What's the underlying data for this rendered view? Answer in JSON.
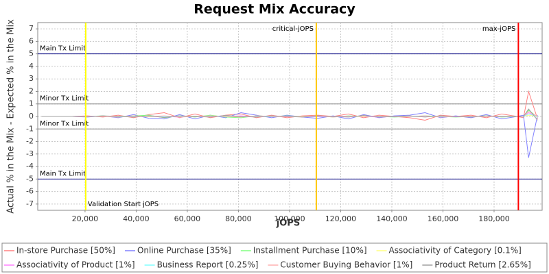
{
  "chart_data": {
    "type": "line",
    "title": "Request Mix Accuracy",
    "x_label": "jOPS",
    "y_label": "Actual % in the Mix - Expected % in the Mix",
    "xlim": [
      1500,
      198800
    ],
    "ylim": [
      -7.5,
      7.5
    ],
    "xticks": [
      {
        "value": 20000,
        "label": "20,000"
      },
      {
        "value": 40000,
        "label": "40,000"
      },
      {
        "value": 60000,
        "label": "60,000"
      },
      {
        "value": 80000,
        "label": "80,000"
      },
      {
        "value": 100000,
        "label": "100,000"
      },
      {
        "value": 120000,
        "label": "120,000"
      },
      {
        "value": 140000,
        "label": "140,000"
      },
      {
        "value": 160000,
        "label": "160,000"
      },
      {
        "value": 180000,
        "label": "180,000"
      }
    ],
    "yticks": [
      -7,
      -6,
      -5,
      -4,
      -3,
      -2,
      -1,
      0,
      1,
      2,
      3,
      4,
      5,
      6,
      7
    ],
    "grid": true,
    "limits": [
      {
        "y": 5,
        "label": "Main Tx Limit",
        "color": "#000080"
      },
      {
        "y": 1,
        "label": "Minor Tx Limit",
        "color": "#808080"
      },
      {
        "y": -1,
        "label": "Minor Tx Limit",
        "color": "#808080"
      },
      {
        "y": -5,
        "label": "Main Tx Limit",
        "color": "#000080"
      }
    ],
    "markers": [
      {
        "x": 20270,
        "label": "Validation Start jOPS",
        "color": "#ffff00",
        "label_side": "bottom"
      },
      {
        "x": 110470,
        "label": "critical-jOPS",
        "color": "#ffc800",
        "label_side": "top"
      },
      {
        "x": 189500,
        "label": "max-jOPS",
        "color": "#ff0000",
        "label_side": "top"
      }
    ],
    "x": [
      3000,
      9000,
      15000,
      21000,
      27000,
      33000,
      39000,
      45000,
      51000,
      57000,
      63000,
      69000,
      75000,
      81000,
      87000,
      93000,
      99000,
      105000,
      111000,
      117000,
      123000,
      129000,
      135000,
      141000,
      147000,
      153000,
      159000,
      165000,
      171000,
      177000,
      183000,
      189000,
      191500,
      193500,
      197000
    ],
    "series": [
      {
        "name": "In-store Purchase [50%]",
        "color": "#ff8080",
        "values": [
          0,
          0,
          0,
          0.05,
          -0.05,
          0.1,
          -0.1,
          0.15,
          0.3,
          -0.1,
          0.2,
          -0.1,
          0.1,
          0.2,
          -0.1,
          0.1,
          -0.1,
          0.05,
          0.1,
          0,
          0.2,
          -0.1,
          0.1,
          0,
          -0.1,
          -0.3,
          0.1,
          0,
          0.1,
          -0.1,
          0.2,
          0,
          -0.1,
          2,
          -0.2
        ]
      },
      {
        "name": "Online Purchase [35%]",
        "color": "#8080ff",
        "values": [
          0,
          0,
          0,
          -0.05,
          0.05,
          -0.1,
          0.15,
          -0.15,
          -0.2,
          0.15,
          -0.2,
          0.1,
          -0.1,
          0.3,
          0.1,
          -0.1,
          0.1,
          -0.05,
          -0.15,
          0.05,
          -0.2,
          0.15,
          -0.1,
          0.05,
          0.1,
          0.3,
          -0.1,
          0.05,
          -0.1,
          0.15,
          -0.2,
          0,
          0.1,
          -3.3,
          0.1
        ]
      },
      {
        "name": "Installment Purchase [10%]",
        "color": "#80ff80",
        "values": [
          0,
          0,
          0,
          0,
          0.05,
          -0.05,
          0.05,
          0.1,
          -0.1,
          0.05,
          -0.05,
          0.1,
          -0.05,
          -0.1,
          0.05,
          0,
          0.05,
          0,
          0.05,
          -0.05,
          0.05,
          0,
          0,
          -0.05,
          0,
          0.05,
          0,
          -0.05,
          0,
          0.05,
          -0.05,
          0,
          0,
          0.5,
          -0.05
        ]
      },
      {
        "name": "Associativity of Category [0.1%]",
        "color": "#ffff80",
        "values": [
          0,
          0,
          0,
          0,
          0,
          0.02,
          0,
          -0.02,
          0,
          0,
          0.02,
          0,
          0,
          -0.02,
          0,
          0,
          0,
          0.02,
          0,
          0,
          0,
          -0.02,
          0,
          0,
          0,
          0,
          0.02,
          0,
          0,
          0,
          0,
          0,
          0,
          0.1,
          0
        ]
      },
      {
        "name": "Associativity of Product [1%]",
        "color": "#ff80ff",
        "values": [
          0,
          0,
          0,
          0,
          0.03,
          0,
          -0.03,
          0.05,
          0,
          -0.05,
          0.03,
          0,
          0,
          0.05,
          -0.03,
          0,
          0.03,
          0,
          -0.03,
          0,
          0.03,
          0,
          -0.05,
          0,
          0.03,
          0,
          0,
          -0.03,
          0,
          0.03,
          0,
          0,
          0,
          0.3,
          0
        ]
      },
      {
        "name": "Business Report [0.25%]",
        "color": "#80ffff",
        "values": [
          0,
          0,
          0,
          0,
          0,
          0.02,
          0,
          0,
          -0.02,
          0,
          0,
          0.02,
          0,
          0,
          0,
          -0.02,
          0,
          0,
          0.02,
          0,
          0,
          0,
          0.02,
          0,
          0,
          -0.02,
          0,
          0,
          0,
          0,
          0.02,
          0,
          0,
          0.2,
          0
        ]
      },
      {
        "name": "Customer Buying Behavior [1%]",
        "color": "#ffb0b0",
        "values": [
          0,
          0,
          0,
          0.03,
          0,
          -0.05,
          0.05,
          0,
          0.05,
          -0.05,
          0,
          0.05,
          0,
          -0.05,
          0.05,
          0,
          -0.03,
          0,
          0.05,
          -0.05,
          0.03,
          0,
          0.05,
          -0.03,
          0,
          0.05,
          -0.05,
          0,
          0.03,
          0,
          -0.03,
          0,
          0,
          0.4,
          0
        ]
      },
      {
        "name": "Product Return [2.65%]",
        "color": "#a0a0a0",
        "values": [
          0,
          0,
          0,
          -0.03,
          0.05,
          0,
          -0.05,
          0.05,
          -0.08,
          0.05,
          0,
          -0.05,
          0.08,
          0,
          -0.05,
          0.05,
          0,
          -0.05,
          0.05,
          0,
          -0.05,
          0.08,
          -0.05,
          0,
          0.05,
          -0.05,
          0.05,
          0,
          -0.05,
          0.05,
          0,
          0,
          0,
          0.6,
          -0.3
        ]
      }
    ]
  }
}
